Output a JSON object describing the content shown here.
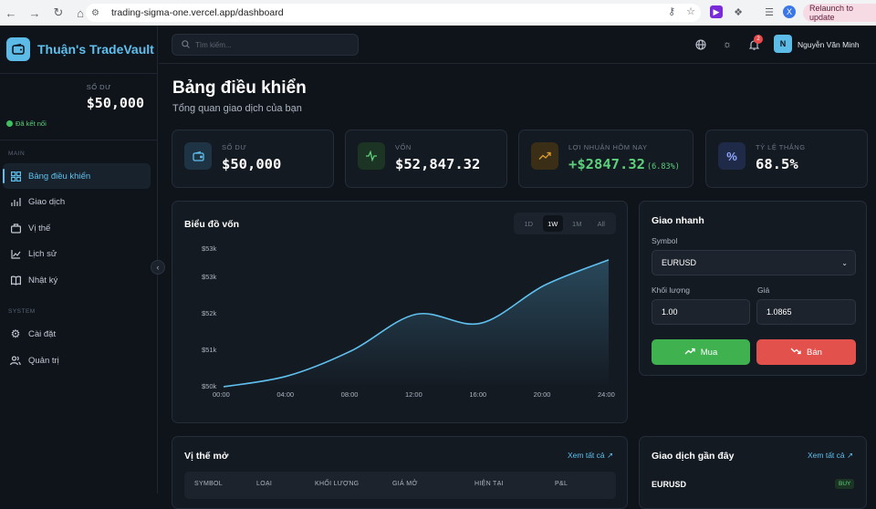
{
  "browser": {
    "url": "trading-sigma-one.vercel.app/dashboard",
    "relaunch_label": "Relaunch to update",
    "profile_initial": "X"
  },
  "brand": {
    "name": "Thuận's TradeVault"
  },
  "sidebar": {
    "balance_label": "SỐ DƯ",
    "balance_value": "$50,000",
    "connection": "Đã kết nối",
    "section_main": "MAIN",
    "section_system": "SYSTEM",
    "items": [
      {
        "label": "Bảng điều khiển",
        "icon": "dashboard-icon",
        "active": true
      },
      {
        "label": "Giao dịch",
        "icon": "chart-bars-icon"
      },
      {
        "label": "Vị thế",
        "icon": "briefcase-icon"
      },
      {
        "label": "Lịch sử",
        "icon": "trend-line-icon"
      },
      {
        "label": "Nhật ký",
        "icon": "book-icon"
      },
      {
        "label": "Cài đặt",
        "icon": "gear-icon"
      },
      {
        "label": "Quản trị",
        "icon": "users-icon"
      }
    ]
  },
  "topbar": {
    "search_placeholder": "Tìm kiếm...",
    "notification_count": "2",
    "user_initial": "N",
    "user_name": "Nguyễn Văn Minh"
  },
  "page": {
    "title": "Bảng điều khiển",
    "subtitle": "Tổng quan giao dịch của bạn"
  },
  "stats": [
    {
      "label": "SỐ DƯ",
      "value": "$50,000",
      "icon": "wallet-icon",
      "color": "#5fc0ee"
    },
    {
      "label": "VỐN",
      "value": "$52,847.32",
      "icon": "pulse-icon",
      "color": "#5cd07a"
    },
    {
      "label": "LỢI NHUẬN HÔM NAY",
      "value": "+$2847.32",
      "change": "(6.83%)",
      "icon": "trend-up-icon",
      "color": "#e0a030"
    },
    {
      "label": "TỶ LỆ THẮNG",
      "value": "68.5%",
      "icon": "percent-icon",
      "color": "#8fa8ff"
    }
  ],
  "equity_chart": {
    "title": "Biểu đồ vốn",
    "ranges": [
      "1D",
      "1W",
      "1M",
      "All"
    ],
    "active_range": "1W",
    "chart_data": {
      "type": "area",
      "x": [
        "00:00",
        "04:00",
        "08:00",
        "12:00",
        "16:00",
        "20:00",
        "24:00"
      ],
      "values": [
        50000,
        50300,
        51000,
        52000,
        51750,
        52800,
        53500
      ],
      "ytick_labels": [
        "$53k",
        "$53k",
        "$52k",
        "$51k",
        "$50k"
      ],
      "ylim": [
        50000,
        53800
      ],
      "color": "#5fc0ee"
    }
  },
  "quick_trade": {
    "title": "Giao nhanh",
    "symbol_label": "Symbol",
    "symbol_value": "EURUSD",
    "volume_label": "Khối lượng",
    "volume_value": "1.00",
    "price_label": "Giá",
    "price_value": "1.0865",
    "buy_label": "Mua",
    "sell_label": "Bán"
  },
  "positions": {
    "title": "Vị thế mở",
    "view_all": "Xem tất cả",
    "columns": [
      "SYMBOL",
      "LOẠI",
      "KHỐI LƯỢNG",
      "GIÁ MỞ",
      "HIỆN TẠI",
      "P&L"
    ]
  },
  "recent": {
    "title": "Giao dịch gần đây",
    "view_all": "Xem tất cả",
    "first_symbol": "EURUSD",
    "first_side": "BUY"
  }
}
